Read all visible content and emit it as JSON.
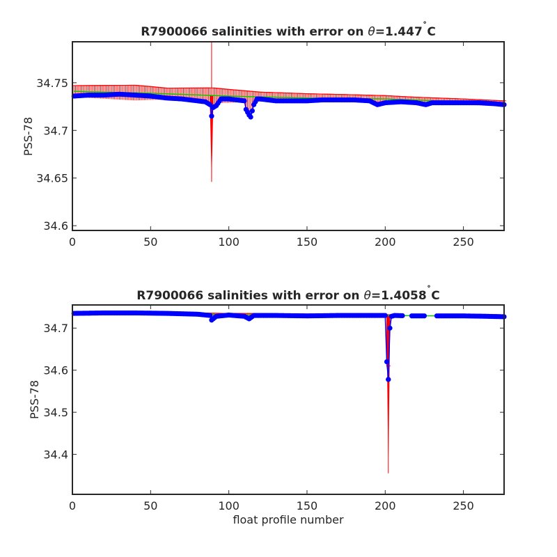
{
  "figure": {
    "xlabel": "float profile number"
  },
  "chart_data": [
    {
      "type": "line",
      "title_prefix": "R7900066 salinities with error on ",
      "title_symbol": "θ",
      "title_value": "=1.447",
      "title_degree": "˚",
      "title_unit": "C",
      "ylabel": "PSS-78",
      "xlabel": "",
      "xlim": [
        0,
        276
      ],
      "ylim": [
        34.595,
        34.793
      ],
      "xticks": [
        0,
        50,
        100,
        150,
        200,
        250
      ],
      "yticks": [
        34.6,
        34.65,
        34.7,
        34.75
      ],
      "ytick_labels": [
        "34.6",
        "34.65",
        "34.7",
        "34.75"
      ],
      "grid": false,
      "colors": {
        "salinity": "#0000ff",
        "calibrated": "#00cc00",
        "error": "#ff0000"
      },
      "series": [
        {
          "role": "salinity",
          "anchors_x": [
            1,
            10,
            20,
            30,
            40,
            50,
            60,
            70,
            80,
            85,
            88,
            89,
            90,
            92,
            95,
            100,
            105,
            110,
            111,
            113,
            114,
            116,
            118,
            120,
            130,
            140,
            150,
            160,
            170,
            180,
            190,
            195,
            200,
            210,
            220,
            226,
            230,
            240,
            250,
            260,
            270,
            276
          ],
          "anchors_y": [
            34.736,
            34.737,
            34.737,
            34.738,
            34.737,
            34.736,
            34.734,
            34.733,
            34.731,
            34.73,
            34.727,
            34.715,
            34.724,
            34.726,
            34.733,
            34.733,
            34.732,
            34.731,
            34.722,
            34.716,
            34.714,
            34.727,
            34.733,
            34.733,
            34.731,
            34.731,
            34.731,
            34.732,
            34.732,
            34.732,
            34.731,
            34.727,
            34.729,
            34.73,
            34.729,
            34.727,
            34.729,
            34.729,
            34.729,
            34.729,
            34.728,
            34.727
          ]
        },
        {
          "role": "calibrated",
          "anchors_x": [
            1,
            50,
            100,
            150,
            200,
            250,
            276
          ],
          "anchors_y": [
            34.741,
            34.739,
            34.736,
            34.734,
            34.733,
            34.73,
            34.728
          ]
        },
        {
          "role": "error",
          "spike_x": 89,
          "spike_low": 34.646,
          "spike_high": 34.793,
          "offset_anchors_x": [
            1,
            40,
            60,
            90,
            120,
            180,
            220,
            276
          ],
          "offset_anchors_y": [
            0.006,
            0.008,
            0.006,
            0.008,
            0.005,
            0.004,
            0.003,
            0.003
          ]
        }
      ]
    },
    {
      "type": "line",
      "title_prefix": "R7900066 salinities with error on ",
      "title_symbol": "θ",
      "title_value": "=1.4058",
      "title_degree": "˚",
      "title_unit": "C",
      "ylabel": "PSS-78",
      "xlabel": "float profile number",
      "xlim": [
        0,
        276
      ],
      "ylim": [
        34.305,
        34.755
      ],
      "xticks": [
        0,
        50,
        100,
        150,
        200,
        250
      ],
      "yticks": [
        34.4,
        34.5,
        34.6,
        34.7
      ],
      "ytick_labels": [
        "34.4",
        "34.5",
        "34.6",
        "34.7"
      ],
      "grid": false,
      "colors": {
        "salinity": "#0000ff",
        "calibrated": "#00cc00",
        "error": "#ff0000"
      },
      "series": [
        {
          "role": "salinity",
          "anchors_x": [
            1,
            20,
            40,
            60,
            80,
            88,
            89,
            92,
            100,
            110,
            113,
            116,
            130,
            150,
            170,
            190,
            200,
            201,
            202,
            203,
            204,
            206,
            215,
            225,
            235,
            250,
            265,
            276
          ],
          "anchors_y": [
            34.735,
            34.736,
            34.736,
            34.735,
            34.733,
            34.73,
            34.719,
            34.728,
            34.731,
            34.728,
            34.722,
            34.73,
            34.73,
            34.729,
            34.73,
            34.73,
            34.73,
            34.62,
            34.578,
            34.7,
            34.728,
            34.73,
            34.729,
            34.729,
            34.729,
            34.729,
            34.728,
            34.727
          ]
        },
        {
          "role": "calibrated",
          "anchors_x": [
            1,
            100,
            200,
            276
          ],
          "anchors_y": [
            34.736,
            34.732,
            34.73,
            34.728
          ]
        },
        {
          "role": "error",
          "spike_x": 202,
          "spike_low": 34.355,
          "spike_high": 34.61,
          "offset_anchors_x": [
            1,
            40,
            80,
            120,
            200,
            276
          ],
          "offset_anchors_y": [
            0.003,
            0.004,
            0.003,
            0.003,
            0.002,
            0.002
          ]
        }
      ]
    }
  ]
}
